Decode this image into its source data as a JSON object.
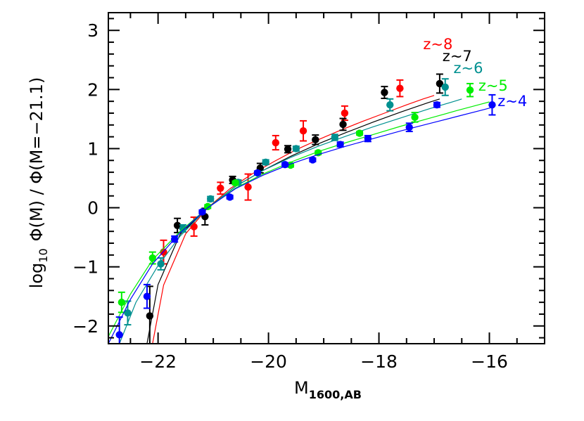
{
  "chart_data": {
    "type": "scatter",
    "xlabel": {
      "main": "M",
      "sub": "1600,AB"
    },
    "ylabel": {
      "main": "log",
      "sub": "10",
      "rest": "Φ(M)  / Φ(M=−21.1)"
    },
    "xlim": [
      -22.9,
      -15.0
    ],
    "ylim": [
      -2.3,
      3.3
    ],
    "x_ticks": [
      -22,
      -20,
      -18,
      -16
    ],
    "x_tick_labels": [
      "−22",
      "−20",
      "−18",
      "−16"
    ],
    "y_ticks": [
      -2,
      -1,
      0,
      1,
      2,
      3
    ],
    "y_tick_labels": [
      "−2",
      "−1",
      "0",
      "1",
      "2",
      "3"
    ],
    "grid": false,
    "series": [
      {
        "name": "z~8",
        "color": "#ff0000",
        "points": [
          {
            "x": -21.9,
            "y": -0.75,
            "err": 0.2
          },
          {
            "x": -21.35,
            "y": -0.32,
            "err": 0.16
          },
          {
            "x": -20.87,
            "y": 0.33,
            "err": 0.1
          },
          {
            "x": -20.37,
            "y": 0.35,
            "err": 0.22
          },
          {
            "x": -19.87,
            "y": 1.1,
            "err": 0.12
          },
          {
            "x": -19.37,
            "y": 1.3,
            "err": 0.17
          },
          {
            "x": -18.62,
            "y": 1.6,
            "err": 0.12
          },
          {
            "x": -17.62,
            "y": 2.02,
            "err": 0.14
          }
        ],
        "curve": [
          [
            -22.1,
            -2.3
          ],
          [
            -21.9,
            -1.31
          ],
          [
            -21.5,
            -0.44
          ],
          [
            -21.1,
            0.0
          ],
          [
            -20.7,
            0.32
          ],
          [
            -20.3,
            0.57
          ],
          [
            -19.9,
            0.78
          ],
          [
            -19.5,
            0.98
          ],
          [
            -19.1,
            1.15
          ],
          [
            -18.7,
            1.31
          ],
          [
            -18.3,
            1.46
          ],
          [
            -17.9,
            1.6
          ],
          [
            -17.5,
            1.74
          ],
          [
            -17.2,
            1.84
          ],
          [
            -17.0,
            1.9
          ]
        ],
        "label": {
          "text": "z~8",
          "x": -17.2,
          "y": 2.68
        }
      },
      {
        "name": "z~7",
        "color": "#000000",
        "points": [
          {
            "x": -22.15,
            "y": -1.83,
            "err": 0.5
          },
          {
            "x": -21.65,
            "y": -0.3,
            "err": 0.12
          },
          {
            "x": -21.15,
            "y": -0.15,
            "err": 0.14
          },
          {
            "x": -20.65,
            "y": 0.47,
            "err": 0.06
          },
          {
            "x": -20.15,
            "y": 0.67,
            "err": 0.08
          },
          {
            "x": -19.65,
            "y": 0.99,
            "err": 0.06
          },
          {
            "x": -19.15,
            "y": 1.15,
            "err": 0.08
          },
          {
            "x": -18.65,
            "y": 1.41,
            "err": 0.1
          },
          {
            "x": -17.9,
            "y": 1.95,
            "err": 0.1
          },
          {
            "x": -16.9,
            "y": 2.1,
            "err": 0.16
          }
        ],
        "curve": [
          [
            -22.2,
            -2.3
          ],
          [
            -22.0,
            -1.3
          ],
          [
            -21.6,
            -0.45
          ],
          [
            -21.1,
            0.0
          ],
          [
            -20.6,
            0.36
          ],
          [
            -20.1,
            0.63
          ],
          [
            -19.6,
            0.87
          ],
          [
            -19.1,
            1.08
          ],
          [
            -18.6,
            1.27
          ],
          [
            -18.1,
            1.45
          ],
          [
            -17.6,
            1.62
          ],
          [
            -17.1,
            1.78
          ],
          [
            -16.9,
            1.84
          ]
        ],
        "label": {
          "text": "z~7",
          "x": -16.85,
          "y": 2.48
        }
      },
      {
        "name": "z~6",
        "color": "#009090",
        "points": [
          {
            "x": -22.55,
            "y": -1.78,
            "err": 0.2
          },
          {
            "x": -21.95,
            "y": -0.95,
            "err": 0.1
          },
          {
            "x": -21.55,
            "y": -0.35,
            "err": 0.06
          },
          {
            "x": -21.05,
            "y": 0.15,
            "err": 0.04
          },
          {
            "x": -20.55,
            "y": 0.43,
            "err": 0.04
          },
          {
            "x": -20.05,
            "y": 0.77,
            "err": 0.04
          },
          {
            "x": -19.5,
            "y": 1.0,
            "err": 0.04
          },
          {
            "x": -18.8,
            "y": 1.19,
            "err": 0.05
          },
          {
            "x": -17.8,
            "y": 1.74,
            "err": 0.1
          },
          {
            "x": -16.8,
            "y": 2.04,
            "err": 0.14
          }
        ],
        "curve": [
          [
            -22.7,
            -2.3
          ],
          [
            -22.4,
            -1.6
          ],
          [
            -22.0,
            -0.98
          ],
          [
            -21.6,
            -0.48
          ],
          [
            -21.1,
            0.0
          ],
          [
            -20.6,
            0.36
          ],
          [
            -20.1,
            0.63
          ],
          [
            -19.6,
            0.85
          ],
          [
            -19.1,
            1.04
          ],
          [
            -18.6,
            1.21
          ],
          [
            -18.1,
            1.37
          ],
          [
            -17.6,
            1.52
          ],
          [
            -17.1,
            1.67
          ],
          [
            -16.6,
            1.81
          ],
          [
            -16.5,
            1.84
          ]
        ],
        "label": {
          "text": "z~6",
          "x": -16.65,
          "y": 2.28
        }
      },
      {
        "name": "z~5",
        "color": "#00ee00",
        "points": [
          {
            "x": -22.66,
            "y": -1.6,
            "err": 0.17
          },
          {
            "x": -22.1,
            "y": -0.85,
            "err": 0.1
          },
          {
            "x": -21.1,
            "y": 0.02,
            "err": 0.03
          },
          {
            "x": -20.6,
            "y": 0.42,
            "err": 0.03
          },
          {
            "x": -19.6,
            "y": 0.72,
            "err": 0.03
          },
          {
            "x": -19.1,
            "y": 0.93,
            "err": 0.03
          },
          {
            "x": -18.35,
            "y": 1.26,
            "err": 0.03
          },
          {
            "x": -17.35,
            "y": 1.53,
            "err": 0.08
          },
          {
            "x": -16.35,
            "y": 1.99,
            "err": 0.11
          }
        ],
        "curve": [
          [
            -22.9,
            -2.18
          ],
          [
            -22.5,
            -1.46
          ],
          [
            -22.1,
            -0.88
          ],
          [
            -21.6,
            -0.4
          ],
          [
            -21.1,
            0.0
          ],
          [
            -20.6,
            0.33
          ],
          [
            -20.1,
            0.57
          ],
          [
            -19.6,
            0.77
          ],
          [
            -19.1,
            0.95
          ],
          [
            -18.6,
            1.1
          ],
          [
            -18.1,
            1.24
          ],
          [
            -17.6,
            1.38
          ],
          [
            -17.1,
            1.51
          ],
          [
            -16.6,
            1.64
          ],
          [
            -16.2,
            1.74
          ],
          [
            -16.0,
            1.79
          ]
        ],
        "label": {
          "text": "z~5",
          "x": -16.2,
          "y": 1.98
        }
      },
      {
        "name": "z~4",
        "color": "#0000ff",
        "points": [
          {
            "x": -22.7,
            "y": -2.15,
            "err": 0.3
          },
          {
            "x": -22.2,
            "y": -1.5,
            "err": 0.2
          },
          {
            "x": -21.7,
            "y": -0.53,
            "err": 0.05
          },
          {
            "x": -21.2,
            "y": -0.07,
            "err": 0.03
          },
          {
            "x": -20.7,
            "y": 0.18,
            "err": 0.03
          },
          {
            "x": -20.2,
            "y": 0.59,
            "err": 0.03
          },
          {
            "x": -19.7,
            "y": 0.73,
            "err": 0.03
          },
          {
            "x": -19.2,
            "y": 0.81,
            "err": 0.03
          },
          {
            "x": -18.7,
            "y": 1.07,
            "err": 0.04
          },
          {
            "x": -18.2,
            "y": 1.17,
            "err": 0.05
          },
          {
            "x": -17.45,
            "y": 1.36,
            "err": 0.07
          },
          {
            "x": -16.95,
            "y": 1.74,
            "err": 0.04
          },
          {
            "x": -15.95,
            "y": 1.74,
            "err": 0.17
          }
        ],
        "curve": [
          [
            -22.9,
            -2.3
          ],
          [
            -22.5,
            -1.55
          ],
          [
            -22.1,
            -0.95
          ],
          [
            -21.6,
            -0.42
          ],
          [
            -21.1,
            0.0
          ],
          [
            -20.6,
            0.32
          ],
          [
            -20.1,
            0.55
          ],
          [
            -19.6,
            0.74
          ],
          [
            -19.1,
            0.9
          ],
          [
            -18.6,
            1.04
          ],
          [
            -18.1,
            1.17
          ],
          [
            -17.6,
            1.3
          ],
          [
            -17.1,
            1.42
          ],
          [
            -16.6,
            1.54
          ],
          [
            -16.1,
            1.66
          ],
          [
            -15.9,
            1.71
          ]
        ],
        "label": {
          "text": "z~4",
          "x": -15.85,
          "y": 1.72
        }
      }
    ]
  }
}
